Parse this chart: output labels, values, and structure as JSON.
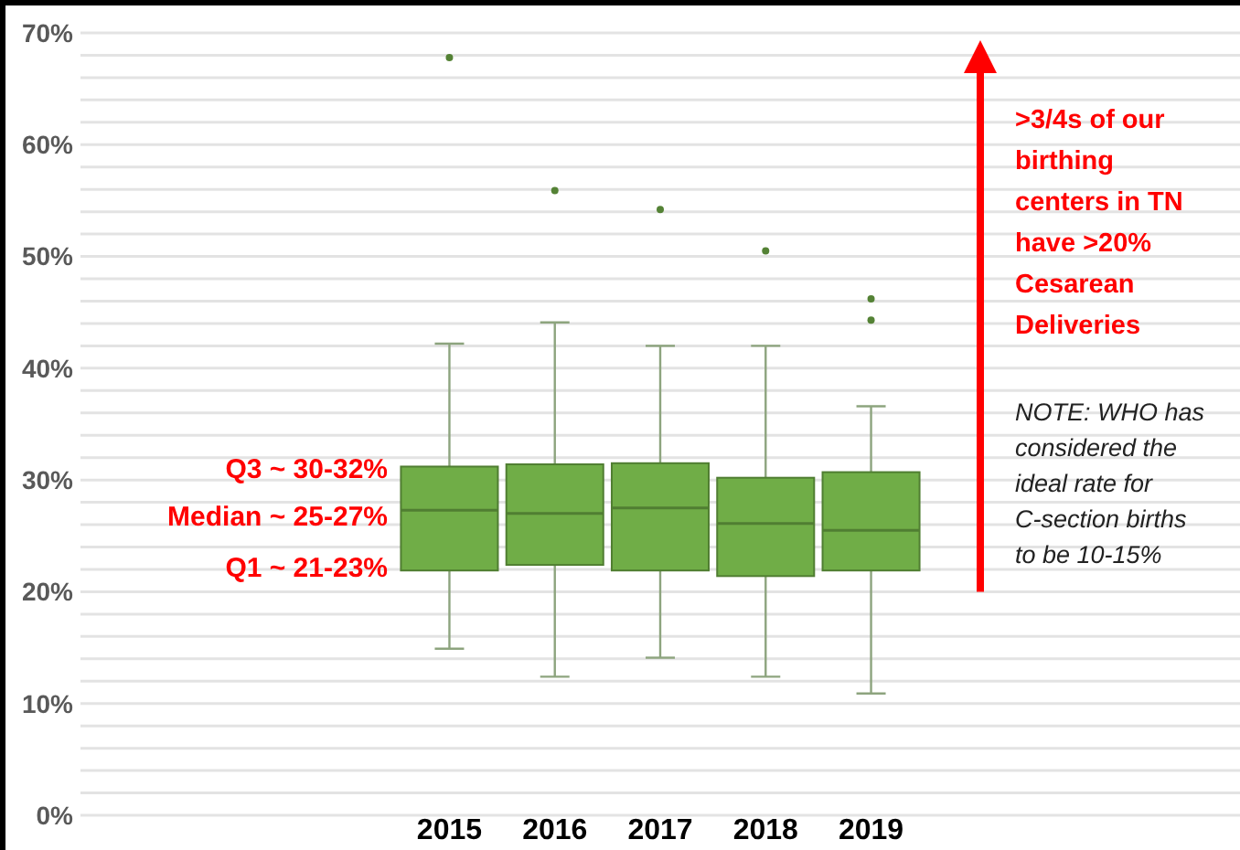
{
  "chart_data": {
    "type": "box",
    "categories": [
      null,
      null,
      null,
      "2015",
      "2016",
      "2017",
      "2018",
      "2019",
      null,
      null,
      null
    ],
    "color": "#70ad47",
    "boxes": [
      null,
      null,
      null,
      {
        "low": 14.9,
        "q1": 21.9,
        "median": 27.3,
        "q3": 31.2,
        "high": 42.2,
        "outliers": [
          67.8
        ]
      },
      {
        "low": 12.4,
        "q1": 22.4,
        "median": 27.0,
        "q3": 31.4,
        "high": 44.1,
        "outliers": [
          55.9
        ]
      },
      {
        "low": 14.1,
        "q1": 21.9,
        "median": 27.5,
        "q3": 31.5,
        "high": 42.0,
        "outliers": [
          54.2
        ]
      },
      {
        "low": 12.4,
        "q1": 21.4,
        "median": 26.1,
        "q3": 30.2,
        "high": 42.0,
        "outliers": [
          50.5
        ]
      },
      {
        "low": 10.9,
        "q1": 21.9,
        "median": 25.5,
        "q3": 30.7,
        "high": 36.6,
        "outliers": [
          46.2,
          44.3
        ]
      },
      null,
      null,
      null
    ],
    "ylim": [
      0,
      70
    ],
    "yticks": [
      {
        "value": 0,
        "label": "0%"
      },
      {
        "value": 2,
        "label": null
      },
      {
        "value": 4,
        "label": null
      },
      {
        "value": 6,
        "label": null
      },
      {
        "value": 8,
        "label": null
      },
      {
        "value": 10,
        "label": "10%"
      },
      {
        "value": 12,
        "label": null
      },
      {
        "value": 14,
        "label": null
      },
      {
        "value": 16,
        "label": null
      },
      {
        "value": 18,
        "label": null
      },
      {
        "value": 20,
        "label": "20%"
      },
      {
        "value": 22,
        "label": null
      },
      {
        "value": 24,
        "label": null
      },
      {
        "value": 26,
        "label": null
      },
      {
        "value": 28,
        "label": null
      },
      {
        "value": 30,
        "label": "30%"
      },
      {
        "value": 32,
        "label": null
      },
      {
        "value": 34,
        "label": null
      },
      {
        "value": 36,
        "label": null
      },
      {
        "value": 38,
        "label": null
      },
      {
        "value": 40,
        "label": "40%"
      },
      {
        "value": 42,
        "label": null
      },
      {
        "value": 44,
        "label": null
      },
      {
        "value": 46,
        "label": null
      },
      {
        "value": 48,
        "label": null
      },
      {
        "value": 50,
        "label": "50%"
      },
      {
        "value": 52,
        "label": null
      },
      {
        "value": 54,
        "label": null
      },
      {
        "value": 56,
        "label": null
      },
      {
        "value": 58,
        "label": null
      },
      {
        "value": 60,
        "label": "60%"
      },
      {
        "value": 62,
        "label": null
      },
      {
        "value": 64,
        "label": null
      },
      {
        "value": 66,
        "label": null
      },
      {
        "value": 68,
        "label": null
      },
      {
        "value": 70,
        "label": "70%"
      }
    ],
    "grid": true,
    "annotations": [
      "Q3 ~ 30-32%",
      "Median ~ 25-27%",
      "Q1 ~ 21-23%",
      ">3/4s of our birthing centers in TN have >20% Cesarean Deliveries",
      "NOTE: WHO has considered the ideal rate for C-section births to be 10-15%"
    ]
  }
}
